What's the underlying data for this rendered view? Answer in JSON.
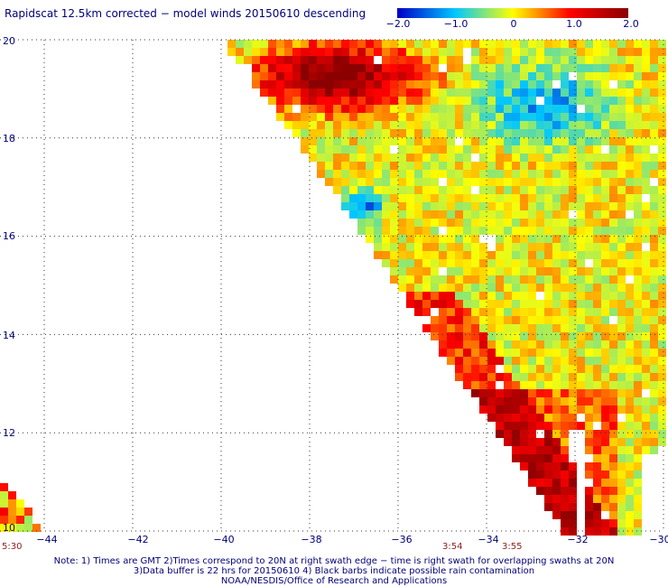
{
  "title": "Rapidscat 12.5km corrected − model winds 20150610 descending",
  "colorbar": {
    "labels": [
      "−2.0",
      "−1.0",
      "0",
      "1.0",
      "2.0"
    ],
    "range": [
      -2.0,
      2.0
    ]
  },
  "lat_labels": [
    "20",
    "18",
    "16",
    "14",
    "12",
    "10"
  ],
  "lon_labels": [
    "−44",
    "−42",
    "−40",
    "−38",
    "−36",
    "−34",
    "−32",
    "−30"
  ],
  "time_labels": [
    "5:30",
    "3:54",
    "3:55"
  ],
  "notes": [
    "Note: 1) Times are GMT 2)Times correspond to 20N at right swath edge − time is right swath for overlapping swaths at 20N",
    "3)Data buffer is 22 hrs for 20150610 4) Black barbs indicate possible rain contamination",
    "NOAA/NESDIS/Office of Research and Applications"
  ],
  "chart_data": {
    "type": "heatmap",
    "title": "Rapidscat 12.5km corrected − model winds 20150610 descending",
    "x_range": [
      -45,
      -30
    ],
    "y_range": [
      10,
      20
    ],
    "x_ticks": [
      -44,
      -42,
      -40,
      -38,
      -36,
      -34,
      -32,
      -30
    ],
    "y_ticks": [
      10,
      12,
      14,
      16,
      18,
      20
    ],
    "value_range": [
      -2.0,
      2.0
    ],
    "grid": true,
    "colormap": [
      "#0000c8",
      "#00c8ff",
      "#ffff00",
      "#ff0000",
      "#8b0000"
    ]
  }
}
